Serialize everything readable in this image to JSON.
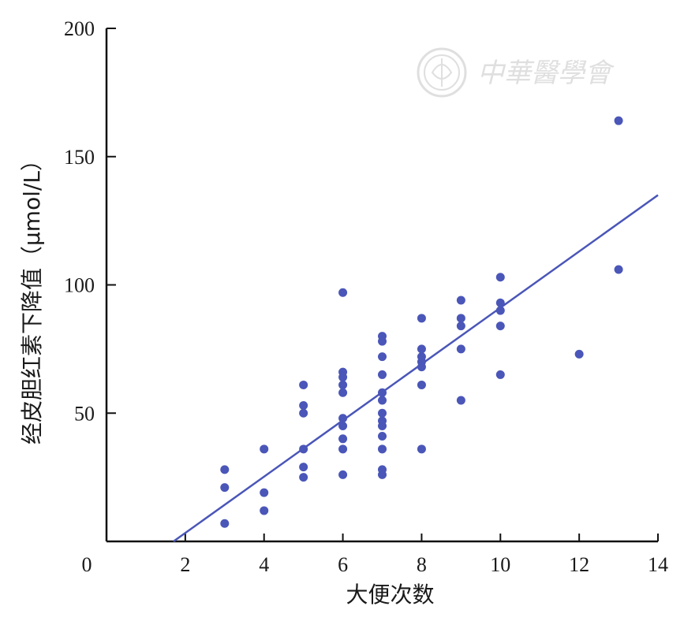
{
  "watermark": {
    "text": "中華醫學會"
  },
  "colors": {
    "points": "#4a56b8",
    "line": "#4a56b8",
    "axis": "#111111",
    "watermark": "#dcdcdc"
  },
  "chart_data": {
    "type": "scatter",
    "title": "",
    "xlabel": "大便次数",
    "ylabel": "经皮胆红素下降值（μmol/L）",
    "xlim": [
      0,
      14
    ],
    "ylim": [
      0,
      200
    ],
    "x_ticks": [
      2,
      4,
      6,
      8,
      10,
      12,
      14
    ],
    "x_tick_labels": [
      "2",
      "4",
      "6",
      "8",
      "10",
      "12",
      "14"
    ],
    "y_ticks": [
      50,
      100,
      150,
      200
    ],
    "y_tick_labels": [
      "50",
      "100",
      "150",
      "200"
    ],
    "origin_label": "0",
    "grid": false,
    "points": [
      [
        3,
        28
      ],
      [
        3,
        21
      ],
      [
        3,
        7
      ],
      [
        4,
        36
      ],
      [
        4,
        19
      ],
      [
        4,
        12
      ],
      [
        5,
        61
      ],
      [
        5,
        53
      ],
      [
        5,
        50
      ],
      [
        5,
        36
      ],
      [
        5,
        29
      ],
      [
        5,
        25
      ],
      [
        6,
        97
      ],
      [
        6,
        66
      ],
      [
        6,
        64
      ],
      [
        6,
        61
      ],
      [
        6,
        58
      ],
      [
        6,
        48
      ],
      [
        6,
        45
      ],
      [
        6,
        40
      ],
      [
        6,
        36
      ],
      [
        6,
        26
      ],
      [
        7,
        80
      ],
      [
        7,
        78
      ],
      [
        7,
        72
      ],
      [
        7,
        65
      ],
      [
        7,
        58
      ],
      [
        7,
        55
      ],
      [
        7,
        50
      ],
      [
        7,
        47
      ],
      [
        7,
        45
      ],
      [
        7,
        41
      ],
      [
        7,
        36
      ],
      [
        7,
        28
      ],
      [
        7,
        26
      ],
      [
        8,
        87
      ],
      [
        8,
        75
      ],
      [
        8,
        72
      ],
      [
        8,
        70
      ],
      [
        8,
        68
      ],
      [
        8,
        61
      ],
      [
        8,
        36
      ],
      [
        9,
        94
      ],
      [
        9,
        87
      ],
      [
        9,
        84
      ],
      [
        9,
        75
      ],
      [
        9,
        55
      ],
      [
        10,
        103
      ],
      [
        10,
        93
      ],
      [
        10,
        90
      ],
      [
        10,
        84
      ],
      [
        10,
        65
      ],
      [
        12,
        73
      ],
      [
        13,
        164
      ],
      [
        13,
        106
      ]
    ],
    "fit_line": {
      "x": [
        1.7,
        14
      ],
      "y": [
        0,
        135
      ]
    }
  }
}
